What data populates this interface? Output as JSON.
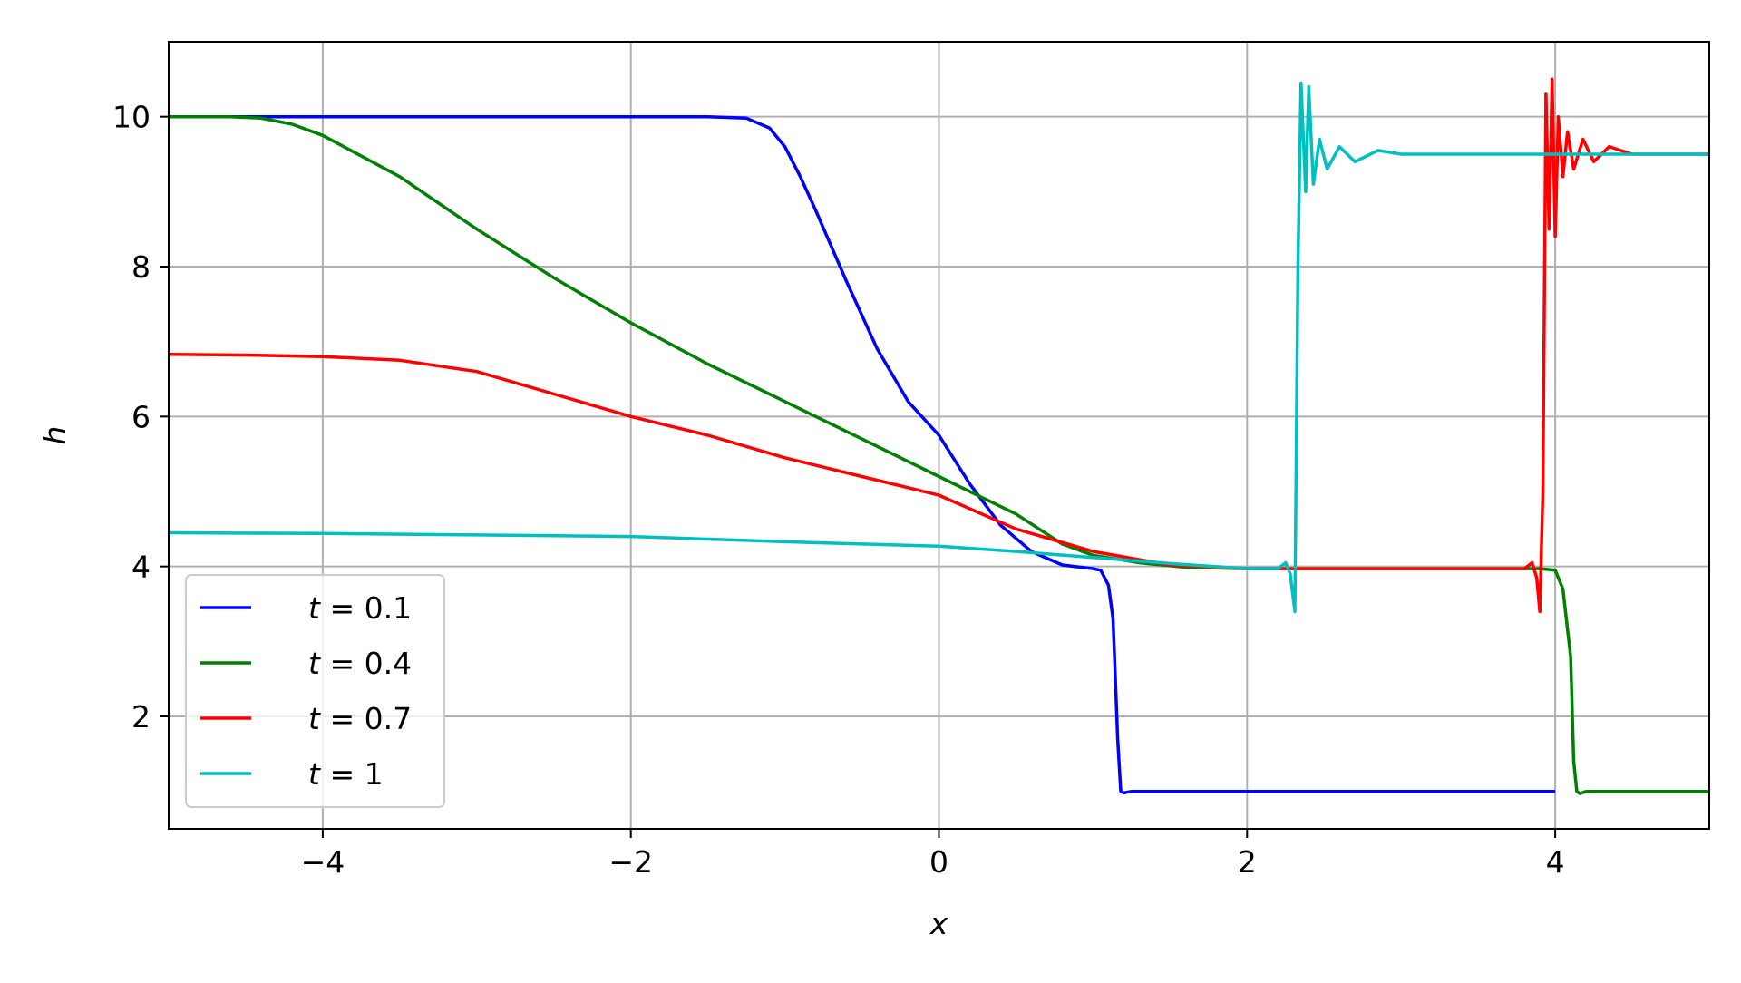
{
  "chart_data": {
    "type": "line",
    "xlabel": "x",
    "ylabel": "h",
    "xlim": [
      -5,
      5
    ],
    "ylim": [
      0.5,
      11
    ],
    "xticks": [
      -4,
      -2,
      0,
      2,
      4
    ],
    "xtick_labels": [
      "−4",
      "−2",
      "0",
      "2",
      "4"
    ],
    "yticks": [
      2,
      4,
      6,
      8,
      10
    ],
    "ytick_labels": [
      "2",
      "4",
      "6",
      "8",
      "10"
    ],
    "grid": true,
    "legend_placement": "lower-left",
    "series": [
      {
        "name": "t = 0.1",
        "legend_var": "t",
        "legend_value": "0.1",
        "color": "#0000ff",
        "points": [
          [
            -5,
            10
          ],
          [
            -2,
            10
          ],
          [
            -1.5,
            10
          ],
          [
            -1.25,
            9.98
          ],
          [
            -1.1,
            9.85
          ],
          [
            -1.0,
            9.6
          ],
          [
            -0.9,
            9.2
          ],
          [
            -0.8,
            8.75
          ],
          [
            -0.6,
            7.8
          ],
          [
            -0.4,
            6.9
          ],
          [
            -0.2,
            6.2
          ],
          [
            0,
            5.75
          ],
          [
            0.2,
            5.1
          ],
          [
            0.4,
            4.55
          ],
          [
            0.6,
            4.2
          ],
          [
            0.8,
            4.02
          ],
          [
            1.0,
            3.97
          ],
          [
            1.05,
            3.95
          ],
          [
            1.1,
            3.75
          ],
          [
            1.13,
            3.3
          ],
          [
            1.16,
            1.7
          ],
          [
            1.18,
            1.0
          ],
          [
            1.2,
            0.98
          ],
          [
            1.25,
            1.0
          ],
          [
            4.0,
            1.0
          ]
        ]
      },
      {
        "name": "t = 0.4",
        "legend_var": "t",
        "legend_value": "0.4",
        "color": "#008000",
        "points": [
          [
            -5,
            10
          ],
          [
            -4.6,
            10
          ],
          [
            -4.4,
            9.98
          ],
          [
            -4.2,
            9.9
          ],
          [
            -4.0,
            9.75
          ],
          [
            -3.5,
            9.2
          ],
          [
            -3.0,
            8.5
          ],
          [
            -2.5,
            7.85
          ],
          [
            -2.0,
            7.25
          ],
          [
            -1.5,
            6.7
          ],
          [
            -1.0,
            6.2
          ],
          [
            -0.5,
            5.7
          ],
          [
            0,
            5.2
          ],
          [
            0.5,
            4.7
          ],
          [
            0.8,
            4.3
          ],
          [
            1.0,
            4.15
          ],
          [
            1.3,
            4.05
          ],
          [
            1.6,
            3.99
          ],
          [
            2.0,
            3.97
          ],
          [
            3.9,
            3.97
          ],
          [
            4.0,
            3.95
          ],
          [
            4.05,
            3.7
          ],
          [
            4.1,
            2.8
          ],
          [
            4.12,
            1.4
          ],
          [
            4.14,
            1.0
          ],
          [
            4.16,
            0.97
          ],
          [
            4.2,
            1.0
          ],
          [
            5,
            1.0
          ]
        ]
      },
      {
        "name": "t = 0.7",
        "legend_var": "t",
        "legend_value": "0.7",
        "color": "#ff0000",
        "points": [
          [
            -5,
            6.83
          ],
          [
            -4.5,
            6.82
          ],
          [
            -4.0,
            6.8
          ],
          [
            -3.5,
            6.75
          ],
          [
            -3.0,
            6.6
          ],
          [
            -2.5,
            6.3
          ],
          [
            -2.0,
            6.0
          ],
          [
            -1.5,
            5.75
          ],
          [
            -1.0,
            5.45
          ],
          [
            -0.5,
            5.2
          ],
          [
            0,
            4.95
          ],
          [
            0.5,
            4.5
          ],
          [
            1.0,
            4.2
          ],
          [
            1.5,
            4.02
          ],
          [
            2.0,
            3.97
          ],
          [
            3.8,
            3.97
          ],
          [
            3.85,
            4.05
          ],
          [
            3.88,
            3.85
          ],
          [
            3.9,
            3.4
          ],
          [
            3.92,
            5.0
          ],
          [
            3.94,
            10.3
          ],
          [
            3.96,
            8.5
          ],
          [
            3.98,
            10.5
          ],
          [
            4.0,
            8.4
          ],
          [
            4.02,
            10.0
          ],
          [
            4.05,
            9.2
          ],
          [
            4.08,
            9.8
          ],
          [
            4.12,
            9.3
          ],
          [
            4.18,
            9.7
          ],
          [
            4.25,
            9.4
          ],
          [
            4.35,
            9.6
          ],
          [
            4.5,
            9.5
          ],
          [
            5,
            9.5
          ]
        ]
      },
      {
        "name": "t = 1",
        "legend_var": "t",
        "legend_value": "1",
        "color": "#00bfbf",
        "points": [
          [
            -5,
            4.45
          ],
          [
            -4,
            4.44
          ],
          [
            -3,
            4.42
          ],
          [
            -2,
            4.4
          ],
          [
            -1,
            4.33
          ],
          [
            0,
            4.27
          ],
          [
            0.5,
            4.2
          ],
          [
            1.0,
            4.12
          ],
          [
            1.5,
            4.04
          ],
          [
            2.0,
            3.97
          ],
          [
            2.2,
            3.97
          ],
          [
            2.25,
            4.05
          ],
          [
            2.28,
            3.9
          ],
          [
            2.31,
            3.4
          ],
          [
            2.33,
            8.0
          ],
          [
            2.35,
            10.45
          ],
          [
            2.38,
            9.0
          ],
          [
            2.4,
            10.4
          ],
          [
            2.43,
            9.1
          ],
          [
            2.47,
            9.7
          ],
          [
            2.52,
            9.3
          ],
          [
            2.6,
            9.6
          ],
          [
            2.7,
            9.4
          ],
          [
            2.85,
            9.55
          ],
          [
            3.0,
            9.5
          ],
          [
            5,
            9.5
          ]
        ]
      }
    ]
  }
}
